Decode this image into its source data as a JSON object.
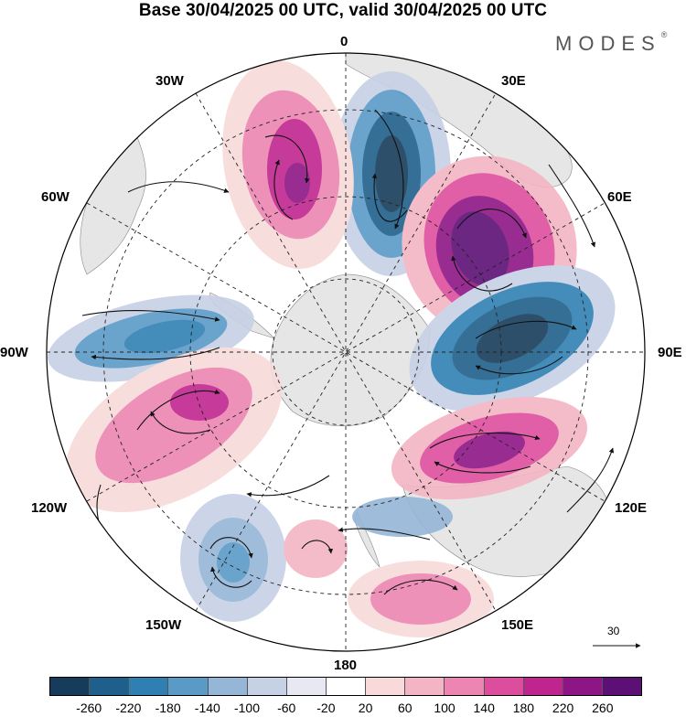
{
  "title": "Base 30/04/2025 00 UTC, valid 30/04/2025 00 UTC",
  "brand": {
    "name": "MODES",
    "mark": "®"
  },
  "longitude_labels": {
    "top": "0",
    "top_right": "30E",
    "right_upper": "60E",
    "right": "90E",
    "right_lower": "120E",
    "bottom_right": "150E",
    "bottom": "180",
    "bottom_left": "150W",
    "left_lower": "120W",
    "left": "90W",
    "left_upper": "60W",
    "top_left": "30W"
  },
  "reference_vector": {
    "label": "30"
  },
  "colorbar": {
    "colors": [
      "#173b5a",
      "#1f5f8b",
      "#2f7fb2",
      "#5a9ac7",
      "#95b6d6",
      "#c7d1e6",
      "#e8e8f2",
      "#ffffff",
      "#f8dada",
      "#f3b5c3",
      "#ec85b2",
      "#dd4d9e",
      "#c0248f",
      "#8e1585",
      "#5c0f74"
    ],
    "labels": [
      "-260",
      "-220",
      "-180",
      "-140",
      "-100",
      "-60",
      "-20",
      "20",
      "60",
      "100",
      "140",
      "180",
      "220",
      "260"
    ]
  },
  "map_data": {
    "projection": "south-polar-stereographic",
    "anomalies": [
      {
        "name": "blue-center-0",
        "value": -260
      },
      {
        "name": "magenta-center-60e",
        "value": 260
      },
      {
        "name": "blue-center-90e",
        "value": -260
      },
      {
        "name": "magenta-center-30w",
        "value": 220
      },
      {
        "name": "blue-center-90w",
        "value": -180
      },
      {
        "name": "pink-center-110w",
        "value": 180
      },
      {
        "name": "magenta-center-120e",
        "value": 220
      },
      {
        "name": "blue-center-150w",
        "value": -180
      },
      {
        "name": "pink-center-150e",
        "value": 140
      }
    ]
  }
}
